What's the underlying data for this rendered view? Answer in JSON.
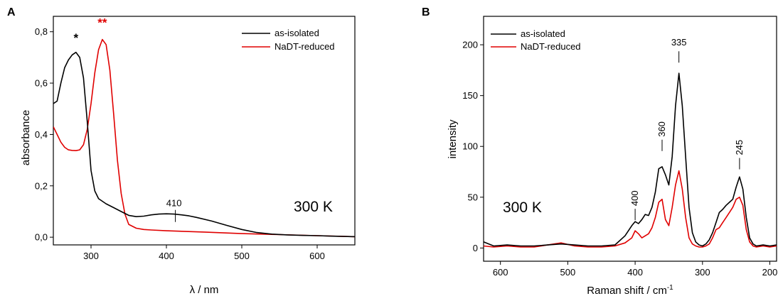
{
  "colors": {
    "as_isolated": "#000000",
    "reduced": "#e00000"
  },
  "chart_data": [
    {
      "type": "line",
      "panel_label": "A",
      "xlabel": "λ / nm",
      "ylabel": "absorbance",
      "xlim": [
        250,
        650
      ],
      "ylim": [
        -0.03,
        0.86
      ],
      "x_ticks": [
        300,
        400,
        500,
        600
      ],
      "x_tick_labels": [
        "300",
        "400",
        "500",
        "600"
      ],
      "y_ticks": [
        0.0,
        0.2,
        0.4,
        0.6,
        0.8
      ],
      "y_tick_labels": [
        "0,0",
        "0,2",
        "0,4",
        "0,6",
        "0,8"
      ],
      "legend": {
        "position": "top-right",
        "entries": [
          "as-isolated",
          "NaDT-reduced"
        ]
      },
      "temperature_label": "300 K",
      "annotations": [
        {
          "text": "*",
          "x": 280,
          "y": 0.76,
          "series": "as-isolated"
        },
        {
          "text": "**",
          "x": 315,
          "y": 0.82,
          "series": "NaDT-reduced"
        },
        {
          "text": "410",
          "x": 410,
          "y": 0.12
        }
      ],
      "series": [
        {
          "name": "as-isolated",
          "x": [
            250,
            255,
            260,
            265,
            270,
            275,
            280,
            285,
            290,
            295,
            300,
            305,
            310,
            320,
            330,
            340,
            350,
            360,
            370,
            380,
            390,
            400,
            410,
            420,
            430,
            440,
            460,
            480,
            500,
            520,
            540,
            560,
            580,
            600,
            620,
            650
          ],
          "y": [
            0.52,
            0.53,
            0.6,
            0.66,
            0.69,
            0.71,
            0.72,
            0.7,
            0.62,
            0.45,
            0.26,
            0.18,
            0.15,
            0.13,
            0.115,
            0.1,
            0.085,
            0.08,
            0.082,
            0.087,
            0.09,
            0.091,
            0.09,
            0.087,
            0.083,
            0.077,
            0.063,
            0.046,
            0.03,
            0.018,
            0.012,
            0.009,
            0.007,
            0.006,
            0.004,
            0.002
          ]
        },
        {
          "name": "NaDT-reduced",
          "x": [
            250,
            255,
            260,
            265,
            270,
            275,
            280,
            285,
            290,
            295,
            300,
            305,
            310,
            315,
            320,
            325,
            330,
            335,
            340,
            345,
            350,
            360,
            370,
            380,
            400,
            450,
            500,
            550,
            600,
            650
          ],
          "y": [
            0.43,
            0.4,
            0.37,
            0.35,
            0.34,
            0.338,
            0.337,
            0.34,
            0.36,
            0.42,
            0.52,
            0.64,
            0.73,
            0.77,
            0.75,
            0.65,
            0.48,
            0.3,
            0.17,
            0.09,
            0.05,
            0.035,
            0.03,
            0.028,
            0.025,
            0.02,
            0.014,
            0.01,
            0.006,
            0.002
          ]
        }
      ]
    },
    {
      "type": "line",
      "panel_label": "B",
      "xlabel": "Raman shift / cm",
      "xlabel_superscript": "-1",
      "ylabel": "intensity",
      "xlim": [
        625,
        190
      ],
      "ylim": [
        -13,
        228
      ],
      "x_ticks": [
        600,
        500,
        400,
        300,
        200
      ],
      "x_tick_labels": [
        "600",
        "500",
        "400",
        "300",
        "200"
      ],
      "y_ticks": [
        0,
        50,
        100,
        150,
        200
      ],
      "y_tick_labels": [
        "0",
        "50",
        "100",
        "150",
        "200"
      ],
      "legend": {
        "position": "top-left",
        "entries": [
          "as-isolated",
          "NaDT-reduced"
        ]
      },
      "temperature_label": "300 K",
      "annotations": [
        {
          "text": "400",
          "x": 400,
          "y": 40
        },
        {
          "text": "360",
          "x": 360,
          "y": 108
        },
        {
          "text": "335",
          "x": 335,
          "y": 195
        },
        {
          "text": "245",
          "x": 245,
          "y": 90
        }
      ],
      "series": [
        {
          "name": "as-isolated",
          "x": [
            625,
            610,
            590,
            570,
            550,
            530,
            510,
            490,
            470,
            450,
            430,
            415,
            405,
            400,
            395,
            390,
            385,
            380,
            375,
            370,
            365,
            360,
            355,
            350,
            345,
            340,
            335,
            330,
            325,
            320,
            315,
            310,
            305,
            300,
            295,
            290,
            285,
            280,
            275,
            270,
            265,
            260,
            255,
            250,
            245,
            240,
            235,
            230,
            225,
            220,
            210,
            200,
            190
          ],
          "y": [
            6,
            2,
            3,
            2,
            2,
            3,
            4,
            3,
            2,
            2,
            3,
            12,
            22,
            26,
            24,
            28,
            33,
            32,
            40,
            55,
            78,
            80,
            72,
            62,
            90,
            140,
            172,
            140,
            90,
            40,
            15,
            6,
            3,
            2,
            4,
            8,
            15,
            25,
            35,
            38,
            42,
            45,
            48,
            60,
            70,
            58,
            30,
            10,
            4,
            2,
            3,
            2,
            3
          ]
        },
        {
          "name": "NaDT-reduced",
          "x": [
            625,
            610,
            590,
            570,
            550,
            530,
            510,
            490,
            470,
            450,
            430,
            415,
            405,
            400,
            395,
            390,
            385,
            380,
            375,
            370,
            365,
            360,
            355,
            350,
            345,
            340,
            335,
            330,
            325,
            320,
            315,
            310,
            305,
            300,
            295,
            290,
            285,
            280,
            275,
            270,
            265,
            260,
            255,
            250,
            245,
            240,
            235,
            230,
            225,
            220,
            210,
            200,
            190
          ],
          "y": [
            2,
            1,
            2,
            1,
            1,
            3,
            5,
            2,
            1,
            1,
            2,
            5,
            10,
            17,
            14,
            10,
            12,
            14,
            20,
            30,
            45,
            48,
            28,
            22,
            40,
            62,
            76,
            58,
            30,
            10,
            4,
            2,
            1,
            1,
            2,
            4,
            10,
            18,
            20,
            25,
            30,
            35,
            40,
            48,
            50,
            42,
            18,
            6,
            2,
            1,
            2,
            1,
            2
          ]
        }
      ]
    }
  ]
}
